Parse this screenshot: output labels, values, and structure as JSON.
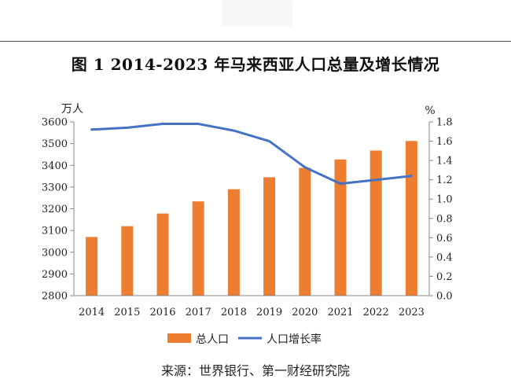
{
  "figure_title": "图 1 2014-2023 年马来西亚人口总量及增长情况",
  "source": "来源：世界银行、第一财经研究院",
  "chart_data": {
    "type": "bar+line",
    "title": "图 1 2014-2023 年马来西亚人口总量及增长情况",
    "categories": [
      "2014",
      "2015",
      "2016",
      "2017",
      "2018",
      "2019",
      "2020",
      "2021",
      "2022",
      "2023"
    ],
    "left_axis": {
      "unit": "万人",
      "ylim": [
        2800,
        3600
      ],
      "ticks": [
        2800,
        2900,
        3000,
        3100,
        3200,
        3300,
        3400,
        3500,
        3600
      ]
    },
    "right_axis": {
      "unit": "%",
      "ylim": [
        0.0,
        1.8
      ],
      "ticks": [
        "0.0",
        "0.2",
        "0.4",
        "0.6",
        "0.8",
        "1.0",
        "1.2",
        "1.4",
        "1.6",
        "1.8"
      ]
    },
    "series": [
      {
        "name": "总人口",
        "type": "bar",
        "axis": "left",
        "color": "#ED7D31",
        "values": [
          3070,
          3120,
          3178,
          3234,
          3290,
          3345,
          3388,
          3427,
          3468,
          3512
        ]
      },
      {
        "name": "人口增长率",
        "type": "line",
        "axis": "right",
        "color": "#4472C4",
        "values": [
          1.72,
          1.74,
          1.78,
          1.78,
          1.71,
          1.6,
          1.33,
          1.16,
          1.2,
          1.24
        ]
      }
    ],
    "legend_position": "bottom",
    "grid": false
  }
}
